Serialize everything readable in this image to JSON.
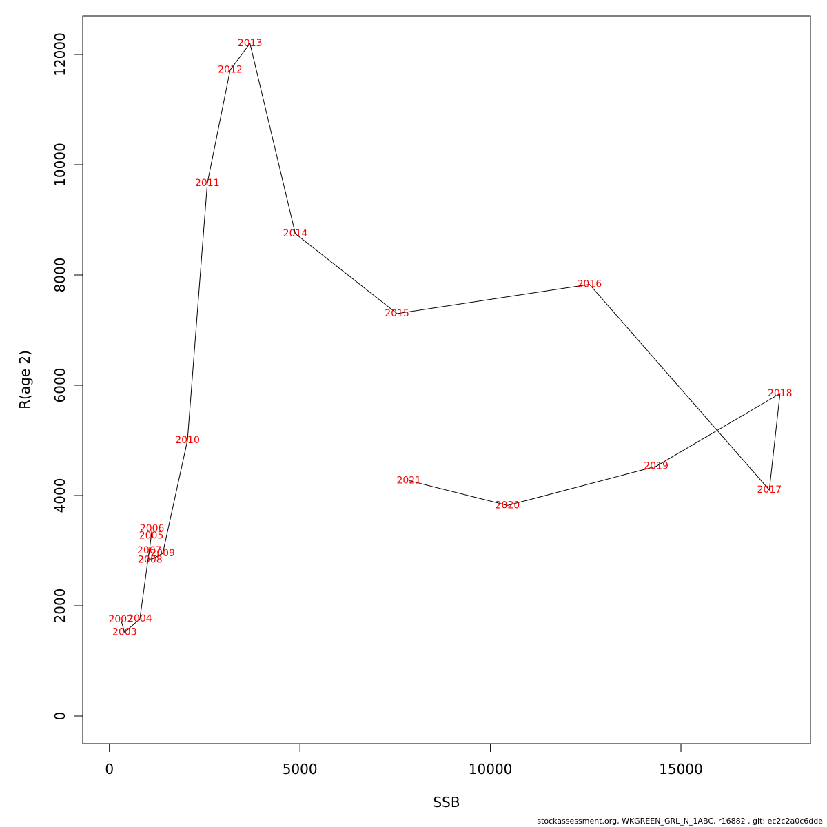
{
  "chart_data": {
    "type": "line",
    "xlabel": "SSB",
    "ylabel": "R(age 2)",
    "xlim": [
      -700,
      18400
    ],
    "ylim": [
      -500,
      12700
    ],
    "x_ticks": [
      0,
      5000,
      10000,
      15000
    ],
    "y_ticks": [
      0,
      2000,
      4000,
      6000,
      8000,
      10000,
      12000
    ],
    "x_tick_labels": [
      "0",
      "5000",
      "10000",
      "15000"
    ],
    "y_tick_labels": [
      "0",
      "2000",
      "4000",
      "6000",
      "8000",
      "10000",
      "12000"
    ],
    "line_color": "#000000",
    "label_color": "#ff0000",
    "points": [
      {
        "label": "2002",
        "x": 300,
        "y": 1750
      },
      {
        "label": "2003",
        "x": 400,
        "y": 1520
      },
      {
        "label": "2004",
        "x": 800,
        "y": 1760
      },
      {
        "label": "2005",
        "x": 1100,
        "y": 3270
      },
      {
        "label": "2006",
        "x": 1120,
        "y": 3400
      },
      {
        "label": "2007",
        "x": 1050,
        "y": 3000
      },
      {
        "label": "2008",
        "x": 1070,
        "y": 2830
      },
      {
        "label": "2009",
        "x": 1400,
        "y": 2950
      },
      {
        "label": "2010",
        "x": 2050,
        "y": 5000
      },
      {
        "label": "2011",
        "x": 2570,
        "y": 9660
      },
      {
        "label": "2012",
        "x": 3170,
        "y": 11720
      },
      {
        "label": "2013",
        "x": 3690,
        "y": 12200
      },
      {
        "label": "2014",
        "x": 4880,
        "y": 8750
      },
      {
        "label": "2015",
        "x": 7550,
        "y": 7300
      },
      {
        "label": "2016",
        "x": 12600,
        "y": 7830
      },
      {
        "label": "2017",
        "x": 17320,
        "y": 4100
      },
      {
        "label": "2018",
        "x": 17600,
        "y": 5850
      },
      {
        "label": "2019",
        "x": 14350,
        "y": 4530
      },
      {
        "label": "2020",
        "x": 10450,
        "y": 3820
      },
      {
        "label": "2021",
        "x": 7860,
        "y": 4270
      }
    ]
  },
  "footer": {
    "text": "stockassessment.org, WKGREEN_GRL_N_1ABC, r16882 , git: ec2c2a0c6dde"
  }
}
